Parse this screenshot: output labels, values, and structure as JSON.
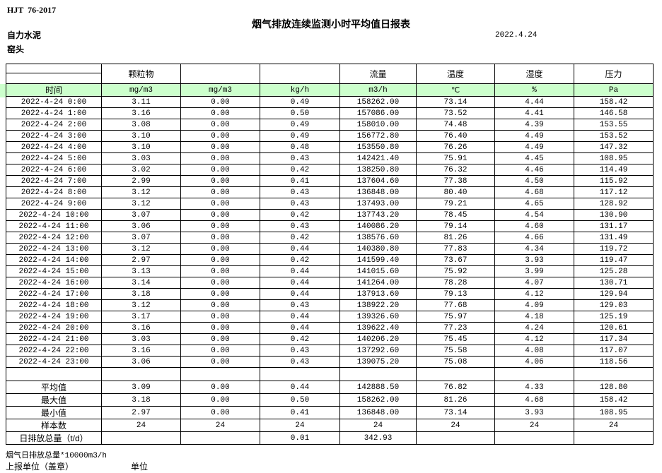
{
  "page": {
    "standard_code": "HJT  76-2017",
    "title": "烟气排放连续监测小时平均值日报表",
    "company": "自力水泥",
    "monitor_point": "窑头",
    "date": "2022.4.24"
  },
  "colors": {
    "unit_row_green": "#ccffcc",
    "border": "#000000"
  },
  "table": {
    "param_headers": [
      "",
      "颗粒物",
      "",
      "",
      "流量",
      "温度",
      "湿度",
      "压力"
    ],
    "units": [
      "时间",
      "mg/m3",
      "mg/m3",
      "kg/h",
      "m3/h",
      "℃",
      "%",
      "Pa"
    ],
    "rows": [
      [
        "2022-4-24 0:00",
        "3.11",
        "0.00",
        "0.49",
        "158262.00",
        "73.14",
        "4.44",
        "158.42"
      ],
      [
        "2022-4-24 1:00",
        "3.16",
        "0.00",
        "0.50",
        "157086.00",
        "73.52",
        "4.41",
        "146.58"
      ],
      [
        "2022-4-24 2:00",
        "3.08",
        "0.00",
        "0.49",
        "158010.00",
        "74.48",
        "4.39",
        "153.55"
      ],
      [
        "2022-4-24 3:00",
        "3.10",
        "0.00",
        "0.49",
        "156772.80",
        "76.40",
        "4.49",
        "153.52"
      ],
      [
        "2022-4-24 4:00",
        "3.10",
        "0.00",
        "0.48",
        "153550.80",
        "76.26",
        "4.49",
        "147.32"
      ],
      [
        "2022-4-24 5:00",
        "3.03",
        "0.00",
        "0.43",
        "142421.40",
        "75.91",
        "4.45",
        "108.95"
      ],
      [
        "2022-4-24 6:00",
        "3.02",
        "0.00",
        "0.42",
        "138250.80",
        "76.32",
        "4.46",
        "114.49"
      ],
      [
        "2022-4-24 7:00",
        "2.99",
        "0.00",
        "0.41",
        "137604.60",
        "77.38",
        "4.50",
        "115.92"
      ],
      [
        "2022-4-24 8:00",
        "3.12",
        "0.00",
        "0.43",
        "136848.00",
        "80.40",
        "4.68",
        "117.12"
      ],
      [
        "2022-4-24 9:00",
        "3.12",
        "0.00",
        "0.43",
        "137493.00",
        "79.21",
        "4.65",
        "128.92"
      ],
      [
        "2022-4-24 10:00",
        "3.07",
        "0.00",
        "0.42",
        "137743.20",
        "78.45",
        "4.54",
        "130.90"
      ],
      [
        "2022-4-24 11:00",
        "3.06",
        "0.00",
        "0.43",
        "140086.20",
        "79.14",
        "4.60",
        "131.17"
      ],
      [
        "2022-4-24 12:00",
        "3.07",
        "0.00",
        "0.42",
        "138576.60",
        "81.26",
        "4.66",
        "131.49"
      ],
      [
        "2022-4-24 13:00",
        "3.12",
        "0.00",
        "0.44",
        "140380.80",
        "77.83",
        "4.34",
        "119.72"
      ],
      [
        "2022-4-24 14:00",
        "2.97",
        "0.00",
        "0.42",
        "141599.40",
        "73.67",
        "3.93",
        "119.47"
      ],
      [
        "2022-4-24 15:00",
        "3.13",
        "0.00",
        "0.44",
        "141015.60",
        "75.92",
        "3.99",
        "125.28"
      ],
      [
        "2022-4-24 16:00",
        "3.14",
        "0.00",
        "0.44",
        "141264.00",
        "78.28",
        "4.07",
        "130.71"
      ],
      [
        "2022-4-24 17:00",
        "3.18",
        "0.00",
        "0.44",
        "137913.60",
        "79.13",
        "4.12",
        "129.94"
      ],
      [
        "2022-4-24 18:00",
        "3.12",
        "0.00",
        "0.43",
        "138922.20",
        "77.68",
        "4.09",
        "129.03"
      ],
      [
        "2022-4-24 19:00",
        "3.17",
        "0.00",
        "0.44",
        "139326.60",
        "75.97",
        "4.18",
        "125.19"
      ],
      [
        "2022-4-24 20:00",
        "3.16",
        "0.00",
        "0.44",
        "139622.40",
        "77.23",
        "4.24",
        "120.61"
      ],
      [
        "2022-4-24 21:00",
        "3.03",
        "0.00",
        "0.42",
        "140206.20",
        "75.45",
        "4.12",
        "117.34"
      ],
      [
        "2022-4-24 22:00",
        "3.16",
        "0.00",
        "0.43",
        "137292.60",
        "75.58",
        "4.08",
        "117.07"
      ],
      [
        "2022-4-24 23:00",
        "3.06",
        "0.00",
        "0.43",
        "139075.20",
        "75.08",
        "4.06",
        "118.56"
      ]
    ],
    "summary_rows": [
      {
        "label": "平均值",
        "values": [
          "3.09",
          "0.00",
          "0.44",
          "142888.50",
          "76.82",
          "4.33",
          "128.80"
        ]
      },
      {
        "label": "最大值",
        "values": [
          "3.18",
          "0.00",
          "0.50",
          "158262.00",
          "81.26",
          "4.68",
          "158.42"
        ]
      },
      {
        "label": "最小值",
        "values": [
          "2.97",
          "0.00",
          "0.41",
          "136848.00",
          "73.14",
          "3.93",
          "108.95"
        ]
      },
      {
        "label": "样本数",
        "values": [
          "24",
          "24",
          "24",
          "24",
          "24",
          "24",
          "24"
        ]
      },
      {
        "label": "日排放总量（t/d）",
        "values": [
          "",
          "",
          "0.01",
          "342.93",
          "",
          "",
          ""
        ]
      }
    ]
  },
  "footer": {
    "note": "烟气日排放总量*10000m3/h",
    "report_unit_label": "上报单位（盖章）",
    "unit_label": "单位"
  }
}
